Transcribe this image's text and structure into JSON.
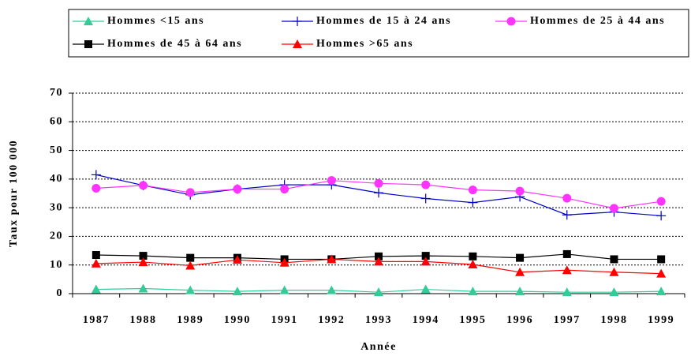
{
  "chart_data": {
    "type": "line",
    "categories": [
      "1987",
      "1988",
      "1989",
      "1990",
      "1991",
      "1992",
      "1993",
      "1994",
      "1995",
      "1996",
      "1997",
      "1998",
      "1999"
    ],
    "series": [
      {
        "name": "Hommes <15 ans",
        "color": "#33cc99",
        "marker": "triangle",
        "values": [
          1.5,
          1.8,
          1.2,
          0.8,
          1.2,
          1.2,
          0.5,
          1.5,
          0.8,
          0.8,
          0.5,
          0.5,
          0.8
        ]
      },
      {
        "name": "Hommes de 15 à 24 ans",
        "color": "#0000cc",
        "marker": "plus",
        "values": [
          41.5,
          37.8,
          34.5,
          36.5,
          38,
          38,
          35.2,
          33.2,
          31.8,
          33.8,
          27.5,
          28.5,
          27.2
        ]
      },
      {
        "name": "Hommes de 25 à 44 ans",
        "color": "#ff33ff",
        "marker": "circle",
        "values": [
          36.8,
          37.8,
          35.3,
          36.5,
          36.5,
          39.5,
          38.5,
          38,
          36.2,
          35.8,
          33.3,
          29.8,
          32.2
        ]
      },
      {
        "name": "Hommes de 45 à 64 ans",
        "color": "#000000",
        "marker": "square",
        "values": [
          13.5,
          13.2,
          12.5,
          12.5,
          12,
          12,
          13,
          13.2,
          13,
          12.5,
          13.8,
          12,
          12
        ]
      },
      {
        "name": "Hommes >65 ans",
        "color": "#ff0000",
        "marker": "triangle",
        "values": [
          10.5,
          11,
          9.8,
          11.8,
          10.8,
          12,
          11.2,
          11.2,
          10.2,
          7.5,
          8.2,
          7.5,
          7
        ]
      }
    ],
    "y_label": "Taux pour 100 000",
    "x_label": "Année",
    "ylim": [
      0,
      70
    ],
    "yticks": [
      0,
      10,
      20,
      30,
      40,
      50,
      60,
      70
    ],
    "grid": true,
    "legend": "top"
  }
}
